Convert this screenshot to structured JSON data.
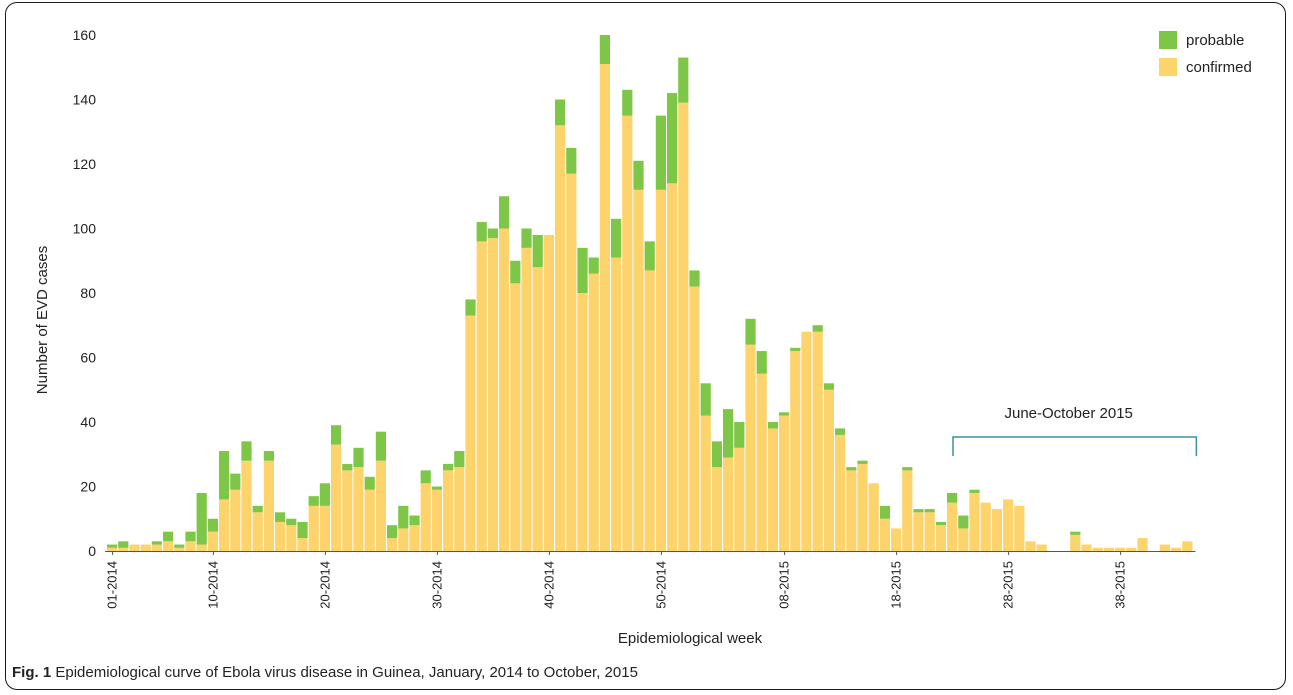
{
  "chart_data": {
    "type": "bar",
    "stacked": true,
    "title": "",
    "xlabel": "Epidemiological week",
    "ylabel": "Number of EVD cases",
    "ylim": [
      0,
      160
    ],
    "yticks": [
      0,
      20,
      40,
      60,
      80,
      100,
      120,
      140,
      160
    ],
    "grid": false,
    "legend_position": "top-right",
    "x_tick_labels": [
      {
        "index": 0,
        "label": "01-2014"
      },
      {
        "index": 9,
        "label": "10-2014"
      },
      {
        "index": 19,
        "label": "20-2014"
      },
      {
        "index": 29,
        "label": "30-2014"
      },
      {
        "index": 39,
        "label": "40-2014"
      },
      {
        "index": 49,
        "label": "50-2014"
      },
      {
        "index": 60,
        "label": "08-2015"
      },
      {
        "index": 70,
        "label": "18-2015"
      },
      {
        "index": 80,
        "label": "28-2015"
      },
      {
        "index": 90,
        "label": "38-2015"
      }
    ],
    "series": [
      {
        "name": "confirmed",
        "color": "#fdd36b",
        "values": [
          1,
          1,
          2,
          2,
          2,
          3,
          1,
          3,
          2,
          6,
          16,
          19,
          28,
          12,
          28,
          9,
          8,
          4,
          14,
          14,
          33,
          25,
          26,
          19,
          28,
          4,
          7,
          8,
          21,
          19,
          25,
          26,
          73,
          96,
          97,
          100,
          83,
          94,
          88,
          98,
          132,
          117,
          80,
          86,
          151,
          91,
          135,
          112,
          87,
          112,
          114,
          139,
          82,
          42,
          26,
          29,
          32,
          64,
          55,
          38,
          42,
          62,
          68,
          68,
          50,
          36,
          25,
          27,
          21,
          10,
          7,
          25,
          12,
          12,
          8,
          15,
          7,
          18,
          15,
          13,
          16,
          14,
          3,
          2,
          0,
          0,
          5,
          2,
          1,
          1,
          1,
          1,
          4,
          0,
          2,
          1,
          3
        ]
      },
      {
        "name": "probable",
        "color": "#7ec647",
        "values": [
          1,
          2,
          0,
          0,
          1,
          3,
          1,
          3,
          16,
          4,
          15,
          5,
          6,
          2,
          3,
          3,
          2,
          5,
          3,
          7,
          6,
          2,
          6,
          4,
          9,
          4,
          7,
          3,
          4,
          1,
          2,
          5,
          5,
          6,
          3,
          10,
          7,
          6,
          10,
          0,
          8,
          8,
          14,
          5,
          9,
          12,
          8,
          9,
          9,
          23,
          28,
          14,
          5,
          10,
          8,
          15,
          8,
          8,
          7,
          2,
          1,
          1,
          0,
          2,
          2,
          2,
          1,
          1,
          0,
          4,
          0,
          1,
          1,
          1,
          1,
          3,
          4,
          1,
          0,
          0,
          0,
          0,
          0,
          0,
          0,
          0,
          1,
          0,
          0,
          0,
          0,
          0,
          0,
          0,
          0,
          0,
          0
        ]
      }
    ],
    "annotation": {
      "text": "June-October 2015",
      "start_index": 75,
      "end_index": 96,
      "color": "#3b8ea8"
    }
  },
  "caption": {
    "label": "Fig. 1",
    "text": "Epidemiological curve of Ebola virus disease in Guinea, January, 2014 to October, 2015"
  }
}
